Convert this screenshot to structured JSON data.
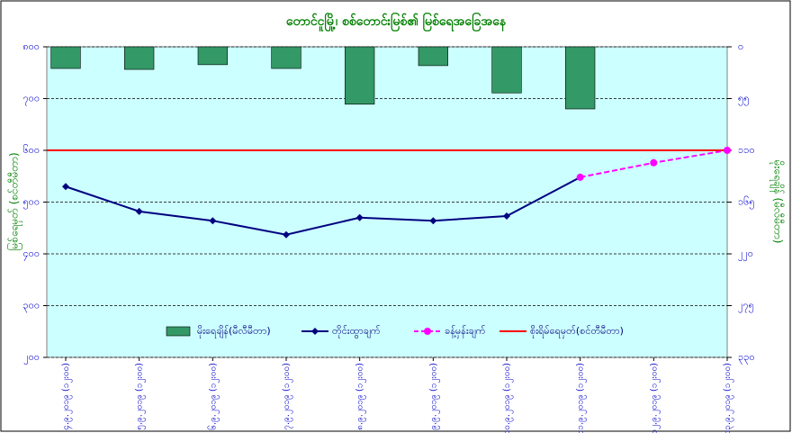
{
  "chart_data": {
    "type": "combo",
    "title": "တောင်ငူမြို့၊ စစ်တောင်းမြစ်၏ မြစ်ရေအခြေအနေ",
    "y_label": "မြစ်ရေမှတ် (စင်တီမီတာ)",
    "y2_label": "မိုးရေချိန် (မီလီမီတာ)",
    "categories": [
      "၄.၉.၂၀၁၉ (၁၂း၀၀)",
      "၅.၉.၂၀၁၉ (၁၂း၀၀)",
      "၆.၉.၂၀၁၉ (၁၂း၀၀)",
      "၇.၉.၂၀၁၉ (၁၂း၀၀)",
      "၈.၉.၂၀၁၉ (၁၂း၀၀)",
      "၉.၉.၂၀၁၉ (၁၂း၀၀)",
      "၁၀.၉.၂၀၁၉ (၁၂း၀၀)",
      "၁၁.၉.၂၀၁၉ (၁၂း၀၀)",
      "၁၂.၉.၂၀၁၉ (၁၂း၀၀)",
      "၁၃.၉.၂၀၁၉ (၁၂း၀၀)"
    ],
    "series": [
      {
        "name": "မိုးရေချိန်(မီလီမီတာ)",
        "kind": "bar",
        "axis": "y2",
        "color": "#339966",
        "values": [
          23,
          24,
          19,
          23,
          61,
          20,
          49,
          66,
          null,
          null
        ]
      },
      {
        "name": "တိုင်းထွာချက်",
        "kind": "line",
        "marker": "diamond",
        "dashed": false,
        "color": "#000080",
        "values": [
          530,
          482,
          464,
          437,
          470,
          464,
          473,
          548,
          null,
          null
        ]
      },
      {
        "name": "ခန့်မှန်းချက်",
        "kind": "line",
        "marker": "circle",
        "dashed": true,
        "color": "#ff00ff",
        "values": [
          null,
          null,
          null,
          null,
          null,
          null,
          null,
          548,
          576,
          600
        ]
      }
    ],
    "reference_line": {
      "name": "စိုးရိမ်ရေမှတ်(စင်တီမီတာ)",
      "value": 600,
      "color": "#ff0000"
    },
    "ylim": [
      200,
      800
    ],
    "yticks": [
      {
        "value": 200,
        "label": "၂၀၀"
      },
      {
        "value": 300,
        "label": "၃၀၀"
      },
      {
        "value": 400,
        "label": "၄၀၀"
      },
      {
        "value": 500,
        "label": "၅၀၀"
      },
      {
        "value": 600,
        "label": "၆၀၀"
      },
      {
        "value": 700,
        "label": "၇၀၀"
      },
      {
        "value": 800,
        "label": "၈၀၀"
      }
    ],
    "y2lim": [
      0,
      330
    ],
    "y2_inverted": true,
    "y2ticks": [
      {
        "value": 0,
        "label": "၀"
      },
      {
        "value": 55,
        "label": "၅၅"
      },
      {
        "value": 110,
        "label": "၁၁၀"
      },
      {
        "value": 165,
        "label": "၁၆၅"
      },
      {
        "value": 220,
        "label": "၂၂၀"
      },
      {
        "value": 275,
        "label": "၂၇၅"
      },
      {
        "value": 330,
        "label": "၃၃၀"
      }
    ],
    "grid": true
  }
}
